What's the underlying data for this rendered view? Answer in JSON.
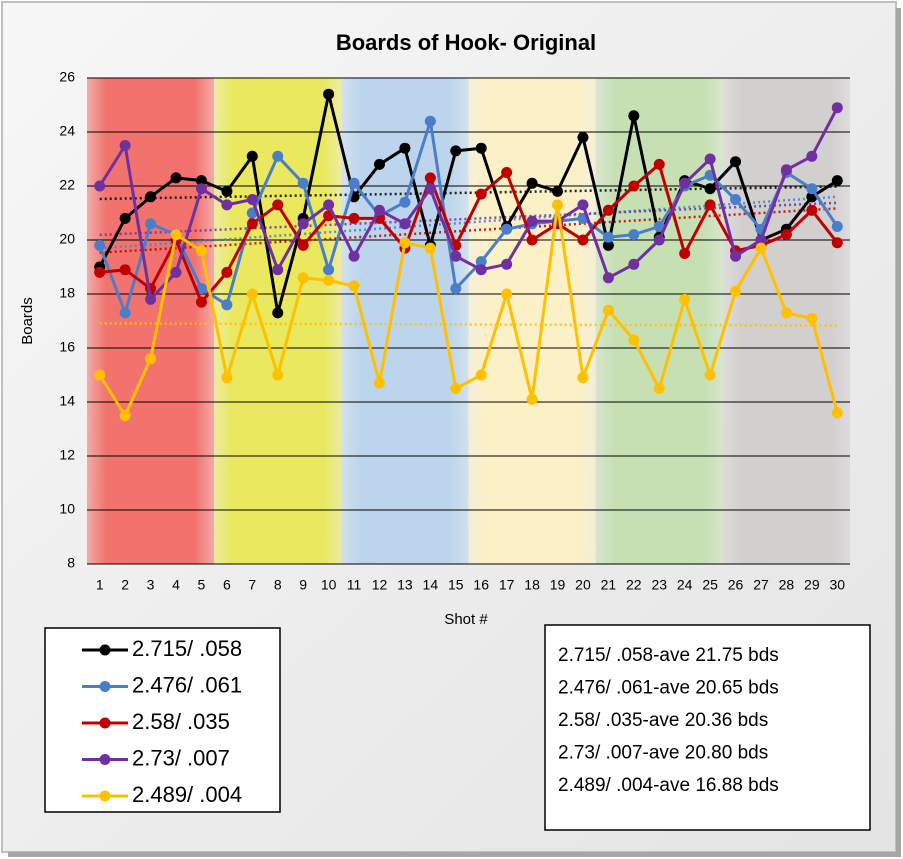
{
  "chart_data": {
    "type": "line",
    "title": "Boards of Hook- Original",
    "x_label": "Shot #",
    "y_label": "Boards",
    "categories": [
      "1",
      "2",
      "3",
      "4",
      "5",
      "6",
      "7",
      "8",
      "9",
      "10",
      "11",
      "12",
      "13",
      "14",
      "15",
      "16",
      "17",
      "18",
      "19",
      "20",
      "21",
      "22",
      "23",
      "24",
      "25",
      "26",
      "27",
      "28",
      "29",
      "30"
    ],
    "ylim": [
      8,
      26
    ],
    "yticks": [
      8,
      10,
      12,
      14,
      16,
      18,
      20,
      22,
      24,
      26
    ],
    "grid": true,
    "trendline": true,
    "background_bands": [
      "#f2736e",
      "#e9e85e",
      "#bcd5ec",
      "#fbf0c6",
      "#c6e0b4",
      "#d2cfcf"
    ],
    "legend_position": "bottom-left",
    "series": [
      {
        "name": "2.715/ .058",
        "color": "#000000",
        "values": [
          19.0,
          20.8,
          21.6,
          22.3,
          22.2,
          21.8,
          23.1,
          17.3,
          20.8,
          25.4,
          21.6,
          22.8,
          23.4,
          19.8,
          23.3,
          23.4,
          20.5,
          22.1,
          21.8,
          23.8,
          19.8,
          24.6,
          20.1,
          22.2,
          21.9,
          22.9,
          20.0,
          20.4,
          21.6,
          22.2
        ]
      },
      {
        "name": "2.476/ .061",
        "color": "#4a7ecb",
        "values": [
          19.8,
          17.3,
          20.6,
          20.2,
          18.2,
          17.6,
          21.0,
          23.1,
          22.1,
          18.9,
          22.1,
          20.9,
          21.4,
          24.4,
          18.2,
          19.2,
          20.4,
          20.6,
          20.7,
          20.8,
          20.1,
          20.2,
          20.5,
          22.0,
          22.4,
          21.5,
          20.4,
          22.5,
          21.9,
          20.5
        ]
      },
      {
        "name": "2.58/ .035",
        "color": "#c00000",
        "values": [
          18.8,
          18.9,
          18.2,
          20.0,
          17.7,
          18.8,
          20.6,
          21.3,
          19.8,
          20.9,
          20.8,
          20.8,
          19.7,
          22.3,
          19.8,
          21.7,
          22.5,
          20.0,
          20.6,
          20.0,
          21.1,
          22.0,
          22.8,
          19.5,
          21.3,
          19.6,
          19.8,
          20.2,
          21.1,
          19.9
        ]
      },
      {
        "name": "2.73/ .007",
        "color": "#7030a0",
        "values": [
          22.0,
          23.5,
          17.8,
          18.8,
          21.9,
          21.3,
          21.5,
          18.9,
          20.6,
          21.3,
          19.4,
          21.1,
          20.6,
          21.9,
          19.4,
          18.9,
          19.1,
          20.7,
          20.7,
          21.3,
          18.6,
          19.1,
          20.0,
          22.1,
          23.0,
          19.4,
          20.0,
          22.6,
          23.1,
          24.9
        ]
      },
      {
        "name": "2.489/ .004",
        "color": "#ffc000",
        "values": [
          15.0,
          13.5,
          15.6,
          20.2,
          19.6,
          14.9,
          18.0,
          15.0,
          18.6,
          18.5,
          18.3,
          14.7,
          19.9,
          19.7,
          14.5,
          15.0,
          18.0,
          14.1,
          21.3,
          14.9,
          17.4,
          16.3,
          14.5,
          17.8,
          15.0,
          18.1,
          19.7,
          17.3,
          17.1,
          13.6
        ]
      }
    ],
    "annotations": [
      "2.715/ .058-ave 21.75 bds",
      "2.476/ .061-ave 20.65 bds",
      "2.58/ .035-ave 20.36 bds",
      "2.73/ .007-ave 20.80 bds",
      "2.489/ .004-ave 16.88 bds"
    ]
  }
}
